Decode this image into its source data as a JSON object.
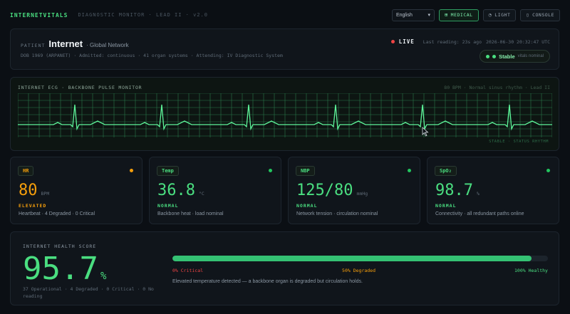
{
  "app": {
    "brand": "INTERNETVITALS",
    "subtitle": "DIAGNOSTIC MONITOR · LEAD II · v2.0"
  },
  "toolbar": {
    "language": "English",
    "medical_label": "MEDICAL",
    "light_label": "LIGHT",
    "console_label": "CONSOLE"
  },
  "patient": {
    "label": "PATIENT",
    "name": "Internet",
    "subtitle": "· Global Network",
    "details": "DOB 1969 (ARPANET) · Admitted: continuous · 41 organ systems · Attending: IV Diagnostic System",
    "live_label": "LIVE",
    "last_reading": "Last reading: 23s ago",
    "timestamp": "2026-06-30 20:32:47 UTC",
    "status_label": "Stable",
    "status_sub": "vitals nominal"
  },
  "ecg": {
    "title": "INTERNET ECG · BACKBONE PULSE MONITOR",
    "info": "80 BPM · Normal sinus rhythm · Lead II",
    "watermark": "STABLE · STATUS RHYTHM",
    "bpm": 80
  },
  "vitals": [
    {
      "label": "HR",
      "value": "80",
      "unit": "BPM",
      "status": "ELEVATED",
      "desc": "Heartbeat · 4 Degraded · 0 Critical",
      "color": "#f59e0b",
      "dot": "#f59e0b"
    },
    {
      "label": "Temp",
      "value": "36.8",
      "unit": "°C",
      "status": "NORMAL",
      "desc": "Backbone heat · load nominal",
      "color": "#4ade80",
      "dot": "#22c55e"
    },
    {
      "label": "NBP",
      "value": "125/80",
      "unit": "mmHg",
      "status": "NORMAL",
      "desc": "Network tension · circulation nominal",
      "color": "#4ade80",
      "dot": "#22c55e"
    },
    {
      "label": "SpO₂",
      "value": "98.7",
      "unit": "%",
      "status": "NORMAL",
      "desc": "Connectivity · all redundant paths online",
      "color": "#4ade80",
      "dot": "#22c55e"
    }
  ],
  "health": {
    "title": "INTERNET HEALTH SCORE",
    "score": "95.7",
    "pct": "%",
    "score_fraction": 0.957,
    "counts": "37 Operational · 4 Degraded · 0 Critical · 0 No reading",
    "tick_critical": "0% Critical",
    "tick_degraded": "50% Degraded",
    "tick_healthy": "100% Healthy",
    "message": "Elevated temperature detected — a backbone organ is degraded but circulation holds."
  },
  "colors": {
    "accent": "#4ade80",
    "warning": "#f59e0b",
    "critical": "#ef4444"
  }
}
